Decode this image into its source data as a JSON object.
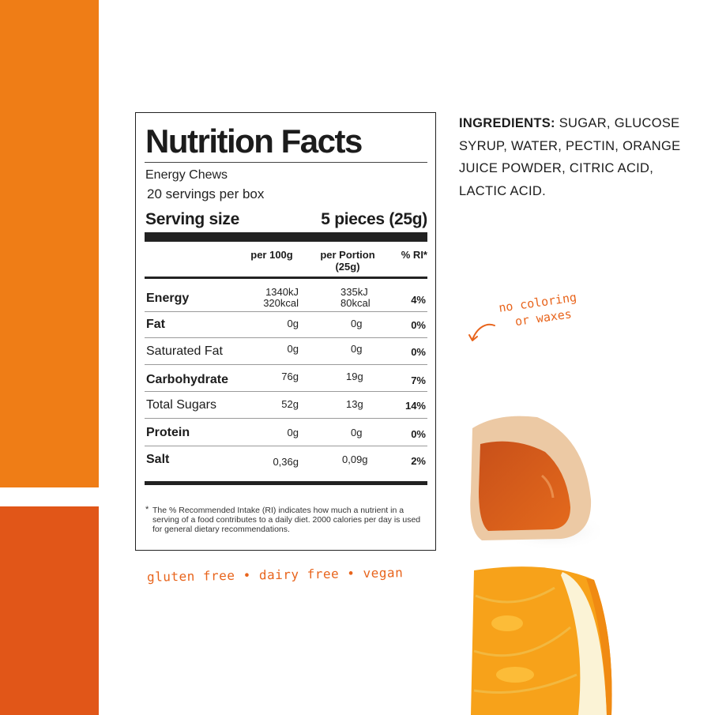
{
  "nutrition": {
    "title": "Nutrition Facts",
    "product": "Energy Chews",
    "servings": "20 servings per box",
    "serving_size_label": "Serving size",
    "serving_size_value": "5 pieces (25g)",
    "headers": {
      "per100": "per 100g",
      "portion_line1": "per Portion",
      "portion_line2": "(25g)",
      "ri": "% RI*"
    },
    "rows": [
      {
        "name": "Energy",
        "per100": "1340kJ",
        "per100b": "320kcal",
        "portion": "335kJ",
        "portionb": "80kcal",
        "ri": "4%"
      },
      {
        "name": "Fat",
        "per100": "0g",
        "portion": "0g",
        "ri": "0%"
      },
      {
        "name": "Saturated Fat",
        "per100": "0g",
        "portion": "0g",
        "ri": "0%"
      },
      {
        "name": "Carbohydrate",
        "per100": "76g",
        "portion": "19g",
        "ri": "7%"
      },
      {
        "name": "Total Sugars",
        "per100": "52g",
        "portion": "13g",
        "ri": "14%"
      },
      {
        "name": "Protein",
        "per100": "0g",
        "portion": "0g",
        "ri": "0%"
      },
      {
        "name": "Salt",
        "per100": "0,36g",
        "portion": "0,09g",
        "ri": "2%"
      }
    ],
    "footnote_star": "*",
    "footnote": "The % Recommended Intake (RI) indicates how much a nutrient in a serving of a food contributes to a daily diet. 2000 calories per day is used for general dietary recommendations."
  },
  "ingredients": {
    "label": "INGREDIENTS:",
    "text": " SUGAR, GLUCOSE SYRUP, WATER, PECTIN, ORANGE JUICE POWDER, CITRIC ACID, LACTIC ACID."
  },
  "annotations": {
    "no_coloring_line1": "no coloring",
    "no_coloring_line2": "or waxes",
    "badges": "gluten free • dairy free • vegan"
  },
  "colors": {
    "orange_bar": "#ef7d16",
    "red_orange_bar": "#e15618",
    "handwriting": "#e8641c"
  },
  "icons": [
    "curved-arrow-icon",
    "orange-gummy-image",
    "orange-slice-image"
  ]
}
